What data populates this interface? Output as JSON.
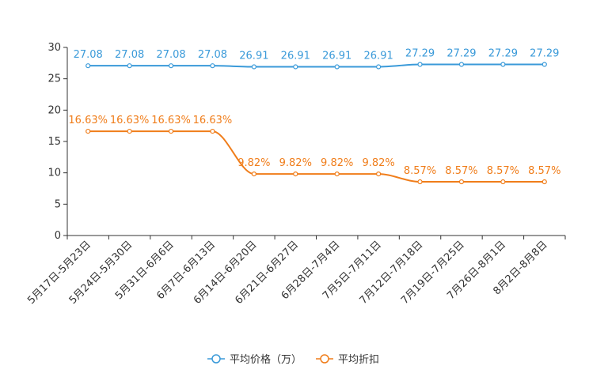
{
  "chart_data": {
    "type": "line",
    "categories": [
      "5月17日-5月23日",
      "5月24日-5月30日",
      "5月31日-6月6日",
      "6月7日-6月13日",
      "6月14日-6月20日",
      "6月21日-6月27日",
      "6月28日-7月4日",
      "7月5日-7月11日",
      "7月12日-7月18日",
      "7月19日-7月25日",
      "7月26日-8月1日",
      "8月2日-8月8日"
    ],
    "series": [
      {
        "name": "平均价格（万）",
        "color": "#3a9ad9",
        "values": [
          27.08,
          27.08,
          27.08,
          27.08,
          26.91,
          26.91,
          26.91,
          26.91,
          27.29,
          27.29,
          27.29,
          27.29
        ],
        "labels": [
          "27.08",
          "27.08",
          "27.08",
          "27.08",
          "26.91",
          "26.91",
          "26.91",
          "26.91",
          "27.29",
          "27.29",
          "27.29",
          "27.29"
        ]
      },
      {
        "name": "平均折扣",
        "color": "#f07d1a",
        "values": [
          16.63,
          16.63,
          16.63,
          16.63,
          9.82,
          9.82,
          9.82,
          9.82,
          8.57,
          8.57,
          8.57,
          8.57
        ],
        "labels": [
          "16.63%",
          "16.63%",
          "16.63%",
          "16.63%",
          "9.82%",
          "9.82%",
          "9.82%",
          "9.82%",
          "8.57%",
          "8.57%",
          "8.57%",
          "8.57%"
        ]
      }
    ],
    "ylim": [
      0,
      30
    ],
    "yticks": [
      "0",
      "5",
      "10",
      "15",
      "20",
      "25",
      "30"
    ],
    "legend_position": "bottom-center"
  }
}
